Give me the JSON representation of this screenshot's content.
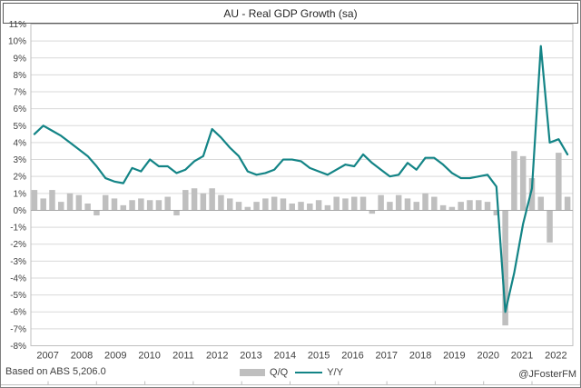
{
  "window": {
    "title": "AU - Real GDP Growth (sa)"
  },
  "footer": {
    "source": "Based on ABS 5,206.0",
    "credit": "@JFosterFM"
  },
  "legend": {
    "qq_label": "Q/Q",
    "yy_label": "Y/Y"
  },
  "colors": {
    "bar": "#bfbfbf",
    "line": "#138486",
    "gridline": "#d9d9d9",
    "plot_border": "#bfbfbf",
    "zero_axis": "#a6a6a6",
    "axis_text": "#404040",
    "frame_border": "#7f7f7f"
  },
  "chart_data": {
    "type": "combo",
    "title": "AU - Real GDP Growth (sa)",
    "x": [
      "2007Q1",
      "2007Q2",
      "2007Q3",
      "2007Q4",
      "2008Q1",
      "2008Q2",
      "2008Q3",
      "2008Q4",
      "2009Q1",
      "2009Q2",
      "2009Q3",
      "2009Q4",
      "2010Q1",
      "2010Q2",
      "2010Q3",
      "2010Q4",
      "2011Q1",
      "2011Q2",
      "2011Q3",
      "2011Q4",
      "2012Q1",
      "2012Q2",
      "2012Q3",
      "2012Q4",
      "2013Q1",
      "2013Q2",
      "2013Q3",
      "2013Q4",
      "2014Q1",
      "2014Q2",
      "2014Q3",
      "2014Q4",
      "2015Q1",
      "2015Q2",
      "2015Q3",
      "2015Q4",
      "2016Q1",
      "2016Q2",
      "2016Q3",
      "2016Q4",
      "2017Q1",
      "2017Q2",
      "2017Q3",
      "2017Q4",
      "2018Q1",
      "2018Q2",
      "2018Q3",
      "2018Q4",
      "2019Q1",
      "2019Q2",
      "2019Q3",
      "2019Q4",
      "2020Q1",
      "2020Q2",
      "2020Q3",
      "2020Q4",
      "2021Q1",
      "2021Q2",
      "2021Q3",
      "2021Q4",
      "2022Q1"
    ],
    "x_tick_labels": [
      "2007",
      "2008",
      "2009",
      "2010",
      "2011",
      "2012",
      "2013",
      "2014",
      "2015",
      "2016",
      "2017",
      "2018",
      "2019",
      "2020",
      "2021",
      "2022"
    ],
    "y_tick_labels": [
      "11%",
      "10%",
      "9%",
      "8%",
      "7%",
      "6%",
      "5%",
      "4%",
      "3%",
      "2%",
      "1%",
      "0%",
      "-1%",
      "-2%",
      "-3%",
      "-4%",
      "-5%",
      "-6%",
      "-7%",
      "-8%"
    ],
    "series": [
      {
        "name": "Q/Q",
        "type": "bar",
        "color": "#bfbfbf",
        "values": [
          1.2,
          0.7,
          1.2,
          0.5,
          1.0,
          0.9,
          0.4,
          -0.3,
          0.9,
          0.7,
          0.3,
          0.6,
          0.7,
          0.6,
          0.6,
          0.8,
          -0.3,
          1.2,
          1.3,
          1.0,
          1.3,
          0.9,
          0.7,
          0.5,
          0.2,
          0.5,
          0.7,
          0.8,
          0.7,
          0.4,
          0.5,
          0.4,
          0.6,
          0.3,
          0.8,
          0.7,
          0.8,
          0.8,
          -0.2,
          0.9,
          0.5,
          0.9,
          0.7,
          0.5,
          1.0,
          0.8,
          0.3,
          0.2,
          0.5,
          0.6,
          0.6,
          0.5,
          -0.3,
          -6.8,
          3.5,
          3.2,
          1.9,
          0.8,
          -1.9,
          3.4,
          0.8
        ]
      },
      {
        "name": "Y/Y",
        "type": "line",
        "color": "#138486",
        "values": [
          4.5,
          5.0,
          4.7,
          4.4,
          4.0,
          3.6,
          3.2,
          2.6,
          1.9,
          1.7,
          1.6,
          2.5,
          2.3,
          3.0,
          2.6,
          2.6,
          2.2,
          2.4,
          2.9,
          3.2,
          4.8,
          4.3,
          3.7,
          3.2,
          2.3,
          2.1,
          2.2,
          2.4,
          3.0,
          3.0,
          2.9,
          2.5,
          2.3,
          2.1,
          2.4,
          2.7,
          2.6,
          3.3,
          2.8,
          2.4,
          2.0,
          2.1,
          2.8,
          2.4,
          3.1,
          3.1,
          2.7,
          2.2,
          1.9,
          1.9,
          2.0,
          2.1,
          1.4,
          -6.0,
          -3.7,
          -0.8,
          1.3,
          9.7,
          4.0,
          4.2,
          3.3
        ]
      }
    ],
    "ylim": [
      -8,
      11
    ],
    "y_step": 1,
    "grid": true,
    "legend_position": "bottom-center"
  }
}
